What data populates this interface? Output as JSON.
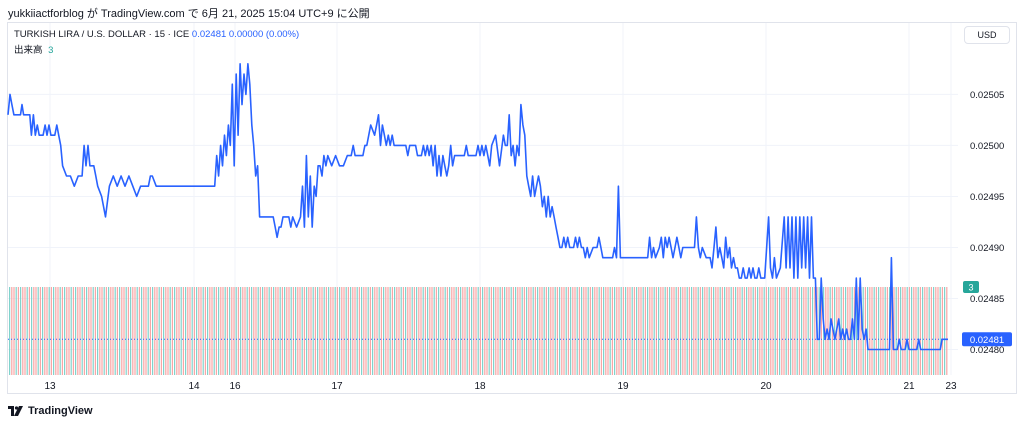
{
  "header": {
    "caption": "yukkiiactforblog が TradingView.com で 6月 21, 2025 15:04 UTC+9 に公開"
  },
  "legend": {
    "symbol": "TURKISH LIRA / U.S. DOLLAR · 15 · ICE",
    "price": "0.02481",
    "change": "0.00000 (0.00%)",
    "volume_label": "出来高",
    "volume_value": "3"
  },
  "toolbar": {
    "currency": "USD"
  },
  "footer": {
    "brand": "TradingView"
  },
  "colors": {
    "line": "#2962ff",
    "volume_up": "#7fd3cc",
    "volume_down": "#f9a5a5",
    "volume_badge": "#26a69a",
    "price_badge": "#2962ff",
    "grid": "#f0f3fa"
  },
  "chart_data": {
    "type": "line",
    "series_name": "TURKISH LIRA / U.S. DOLLAR",
    "ylim": [
      0.024775,
      0.02512
    ],
    "y_ticks": [
      "0.02505",
      "0.02500",
      "0.02495",
      "0.02490",
      "0.02485",
      "0.02480"
    ],
    "x_ticks": [
      "13",
      "14",
      "16",
      "17",
      "18",
      "19",
      "20",
      "21",
      "23"
    ],
    "last_price": "0.02481",
    "last_volume": "3",
    "grid": true,
    "y_axis_side": "right",
    "points": [
      [
        0,
        0.02503
      ],
      [
        0.5,
        0.02505
      ],
      [
        1,
        0.02504
      ],
      [
        1.5,
        0.02503
      ],
      [
        3.2,
        0.02503
      ],
      [
        3.6,
        0.02504
      ],
      [
        4,
        0.02503
      ],
      [
        5.6,
        0.02503
      ],
      [
        6,
        0.02501
      ],
      [
        6.5,
        0.02503
      ],
      [
        7,
        0.02501
      ],
      [
        7.5,
        0.02502
      ],
      [
        8,
        0.02501
      ],
      [
        9,
        0.02501
      ],
      [
        9.5,
        0.02502
      ],
      [
        10,
        0.02501
      ],
      [
        10.5,
        0.02502
      ],
      [
        11,
        0.02501
      ],
      [
        12,
        0.02501
      ],
      [
        12.5,
        0.02502
      ],
      [
        13,
        0.02501
      ],
      [
        13.5,
        0.025
      ],
      [
        14,
        0.02498
      ],
      [
        15,
        0.02497
      ],
      [
        16,
        0.02497
      ],
      [
        17,
        0.02496
      ],
      [
        18,
        0.02497
      ],
      [
        19,
        0.02497
      ],
      [
        19.5,
        0.025
      ],
      [
        20,
        0.02498
      ],
      [
        20.5,
        0.025
      ],
      [
        21,
        0.02498
      ],
      [
        22,
        0.02498
      ],
      [
        22.5,
        0.02497
      ],
      [
        23,
        0.02496
      ],
      [
        24,
        0.02495
      ],
      [
        25,
        0.02493
      ],
      [
        26,
        0.02496
      ],
      [
        27,
        0.02497
      ],
      [
        28,
        0.02496
      ],
      [
        29,
        0.02497
      ],
      [
        30,
        0.02496
      ],
      [
        31,
        0.02497
      ],
      [
        32,
        0.02496
      ],
      [
        33,
        0.02495
      ],
      [
        34,
        0.02496
      ],
      [
        35,
        0.02496
      ],
      [
        36,
        0.02496
      ],
      [
        36.5,
        0.02497
      ],
      [
        37,
        0.02497
      ],
      [
        38,
        0.02496
      ],
      [
        41,
        0.02496
      ],
      [
        45,
        0.02496
      ],
      [
        49,
        0.02496
      ],
      [
        53,
        0.02496
      ],
      [
        53.5,
        0.02499
      ],
      [
        54,
        0.02497
      ],
      [
        54.5,
        0.025
      ],
      [
        55,
        0.02498
      ],
      [
        55.5,
        0.02501
      ],
      [
        56,
        0.02499
      ],
      [
        56.5,
        0.02502
      ],
      [
        57,
        0.025
      ],
      [
        57.5,
        0.02506
      ],
      [
        58,
        0.02498
      ],
      [
        58.5,
        0.02507
      ],
      [
        59,
        0.02501
      ],
      [
        59.5,
        0.02508
      ],
      [
        60,
        0.02504
      ],
      [
        60.5,
        0.02507
      ],
      [
        61,
        0.02505
      ],
      [
        61.5,
        0.02508
      ],
      [
        62,
        0.02506
      ],
      [
        62.5,
        0.02502
      ],
      [
        63,
        0.025
      ],
      [
        63.5,
        0.02497
      ],
      [
        64,
        0.02498
      ],
      [
        64.5,
        0.02493
      ],
      [
        65,
        0.02493
      ],
      [
        68,
        0.02493
      ],
      [
        68.5,
        0.02492
      ],
      [
        69,
        0.02491
      ],
      [
        69.5,
        0.02492
      ],
      [
        70,
        0.02492
      ],
      [
        70.5,
        0.02493
      ],
      [
        72,
        0.02493
      ],
      [
        72.5,
        0.02492
      ],
      [
        73,
        0.02493
      ],
      [
        74,
        0.02492
      ],
      [
        75,
        0.02493
      ],
      [
        75.5,
        0.02496
      ],
      [
        76,
        0.02492
      ],
      [
        76.5,
        0.02499
      ],
      [
        77,
        0.02493
      ],
      [
        77.5,
        0.02497
      ],
      [
        78,
        0.02492
      ],
      [
        78.5,
        0.02496
      ],
      [
        79,
        0.02495
      ],
      [
        79.5,
        0.02498
      ],
      [
        80,
        0.02498
      ],
      [
        80.5,
        0.02497
      ],
      [
        81,
        0.02499
      ],
      [
        81.5,
        0.02498
      ],
      [
        82,
        0.02499
      ],
      [
        83,
        0.02498
      ],
      [
        84,
        0.02499
      ],
      [
        85,
        0.02498
      ],
      [
        86,
        0.02498
      ],
      [
        87,
        0.02499
      ],
      [
        88,
        0.02499
      ],
      [
        88.5,
        0.025
      ],
      [
        89,
        0.02499
      ],
      [
        90,
        0.02499
      ],
      [
        91,
        0.02499
      ],
      [
        91.5,
        0.025
      ],
      [
        92,
        0.025
      ],
      [
        93,
        0.02502
      ],
      [
        94,
        0.02501
      ],
      [
        94.5,
        0.02502
      ],
      [
        95,
        0.02503
      ],
      [
        95.5,
        0.025
      ],
      [
        96,
        0.02502
      ],
      [
        96.5,
        0.02501
      ],
      [
        97,
        0.025
      ],
      [
        97.5,
        0.02501
      ],
      [
        98,
        0.025
      ],
      [
        98.5,
        0.02501
      ],
      [
        99,
        0.025
      ],
      [
        100,
        0.025
      ],
      [
        101,
        0.025
      ],
      [
        101.5,
        0.025
      ],
      [
        102,
        0.025
      ],
      [
        102.5,
        0.02499
      ],
      [
        103,
        0.025
      ],
      [
        104,
        0.025
      ],
      [
        104.5,
        0.025
      ],
      [
        105,
        0.02499
      ],
      [
        106,
        0.02499
      ],
      [
        106.5,
        0.025
      ],
      [
        107,
        0.02499
      ],
      [
        107.5,
        0.025
      ],
      [
        108,
        0.02499
      ],
      [
        108.5,
        0.025
      ],
      [
        109,
        0.02498
      ],
      [
        109.5,
        0.025
      ],
      [
        110,
        0.02497
      ],
      [
        110.5,
        0.02499
      ],
      [
        111,
        0.02497
      ],
      [
        111.5,
        0.02499
      ],
      [
        112,
        0.02498
      ],
      [
        112.5,
        0.02497
      ],
      [
        113,
        0.02498
      ],
      [
        113.5,
        0.025
      ],
      [
        114,
        0.02498
      ],
      [
        114.5,
        0.02499
      ],
      [
        115,
        0.02499
      ],
      [
        116,
        0.02499
      ],
      [
        117,
        0.02499
      ],
      [
        117.5,
        0.025
      ],
      [
        118,
        0.02499
      ],
      [
        119,
        0.02499
      ],
      [
        120,
        0.02499
      ],
      [
        120.5,
        0.025
      ],
      [
        121,
        0.02499
      ],
      [
        121.5,
        0.025
      ],
      [
        122,
        0.02499
      ],
      [
        122.5,
        0.025
      ],
      [
        123,
        0.02499
      ],
      [
        123.5,
        0.02498
      ],
      [
        124,
        0.025
      ],
      [
        125,
        0.02501
      ],
      [
        126,
        0.02498
      ],
      [
        127,
        0.02501
      ],
      [
        127.5,
        0.025
      ],
      [
        128,
        0.025
      ],
      [
        128.5,
        0.02503
      ],
      [
        129,
        0.02499
      ],
      [
        129.5,
        0.025
      ],
      [
        130,
        0.02498
      ],
      [
        130.5,
        0.025
      ],
      [
        131,
        0.02499
      ],
      [
        131.5,
        0.02504
      ],
      [
        132,
        0.02502
      ],
      [
        132.5,
        0.02501
      ],
      [
        133,
        0.02497
      ],
      [
        133.5,
        0.02496
      ],
      [
        134,
        0.02495
      ],
      [
        134.5,
        0.02497
      ],
      [
        135,
        0.02495
      ],
      [
        135.5,
        0.02496
      ],
      [
        136,
        0.02497
      ],
      [
        136.5,
        0.02496
      ],
      [
        137,
        0.02494
      ],
      [
        137.5,
        0.02495
      ],
      [
        138,
        0.02493
      ],
      [
        138.5,
        0.02495
      ],
      [
        139,
        0.02493
      ],
      [
        139.5,
        0.02494
      ],
      [
        140,
        0.02493
      ],
      [
        140.5,
        0.02492
      ],
      [
        141,
        0.02491
      ],
      [
        141.5,
        0.0249
      ],
      [
        142,
        0.0249
      ],
      [
        142.5,
        0.02491
      ],
      [
        143,
        0.0249
      ],
      [
        143.5,
        0.02491
      ],
      [
        144,
        0.0249
      ],
      [
        145,
        0.0249
      ],
      [
        145.5,
        0.02491
      ],
      [
        146,
        0.0249
      ],
      [
        146.5,
        0.02491
      ],
      [
        147,
        0.0249
      ],
      [
        147.5,
        0.0249
      ],
      [
        148,
        0.02489
      ],
      [
        148.5,
        0.0249
      ],
      [
        149,
        0.02489
      ],
      [
        150,
        0.0249
      ],
      [
        151,
        0.0249
      ],
      [
        151.5,
        0.02491
      ],
      [
        152,
        0.0249
      ],
      [
        152.5,
        0.02489
      ],
      [
        153,
        0.02489
      ],
      [
        154,
        0.02489
      ],
      [
        155,
        0.02489
      ],
      [
        155.5,
        0.0249
      ],
      [
        156,
        0.02489
      ],
      [
        156.5,
        0.02496
      ],
      [
        157,
        0.02489
      ],
      [
        158,
        0.02489
      ],
      [
        160,
        0.02489
      ],
      [
        162,
        0.02489
      ],
      [
        164,
        0.02489
      ],
      [
        164.5,
        0.02491
      ],
      [
        165,
        0.02489
      ],
      [
        165.5,
        0.0249
      ],
      [
        166,
        0.02489
      ],
      [
        167,
        0.0249
      ],
      [
        167.5,
        0.02491
      ],
      [
        168,
        0.02489
      ],
      [
        168.5,
        0.02491
      ],
      [
        169,
        0.0249
      ],
      [
        169.5,
        0.02491
      ],
      [
        170,
        0.0249
      ],
      [
        170.5,
        0.02489
      ],
      [
        171,
        0.0249
      ],
      [
        171.5,
        0.02491
      ],
      [
        172,
        0.0249
      ],
      [
        172.5,
        0.02489
      ],
      [
        173,
        0.0249
      ],
      [
        174,
        0.0249
      ],
      [
        175,
        0.0249
      ],
      [
        176,
        0.0249
      ],
      [
        176.5,
        0.02493
      ],
      [
        177,
        0.0249
      ],
      [
        177.5,
        0.02489
      ],
      [
        178,
        0.0249
      ],
      [
        179,
        0.02489
      ],
      [
        180,
        0.02489
      ],
      [
        180.5,
        0.02488
      ],
      [
        181,
        0.0249
      ],
      [
        181.5,
        0.02492
      ],
      [
        182,
        0.02489
      ],
      [
        182.5,
        0.0249
      ],
      [
        183,
        0.02489
      ],
      [
        183.5,
        0.02488
      ],
      [
        184,
        0.02491
      ],
      [
        184.5,
        0.02489
      ],
      [
        185,
        0.0249
      ],
      [
        185.5,
        0.02488
      ],
      [
        186,
        0.02489
      ],
      [
        186.5,
        0.02488
      ],
      [
        187,
        0.02488
      ],
      [
        187.5,
        0.02487
      ],
      [
        188,
        0.02487
      ],
      [
        188.5,
        0.02488
      ],
      [
        189,
        0.02487
      ],
      [
        189.5,
        0.02487
      ],
      [
        190,
        0.02488
      ],
      [
        190.5,
        0.02487
      ],
      [
        191,
        0.02488
      ],
      [
        191.5,
        0.02487
      ],
      [
        192,
        0.02487
      ],
      [
        192.5,
        0.02488
      ],
      [
        193,
        0.02487
      ],
      [
        194,
        0.02487
      ],
      [
        195,
        0.02493
      ],
      [
        195.5,
        0.02488
      ],
      [
        196,
        0.02487
      ],
      [
        196.5,
        0.02489
      ],
      [
        197,
        0.02487
      ],
      [
        198,
        0.02488
      ],
      [
        199,
        0.02493
      ],
      [
        199.5,
        0.02488
      ],
      [
        200,
        0.02493
      ],
      [
        200.5,
        0.02488
      ],
      [
        201,
        0.02493
      ],
      [
        201.5,
        0.02487
      ],
      [
        202,
        0.02493
      ],
      [
        202.5,
        0.02487
      ],
      [
        203,
        0.02493
      ],
      [
        203.5,
        0.02488
      ],
      [
        204,
        0.02493
      ],
      [
        204.5,
        0.02488
      ],
      [
        205,
        0.02493
      ],
      [
        205.5,
        0.02487
      ],
      [
        206,
        0.02493
      ],
      [
        206.5,
        0.02487
      ],
      [
        207,
        0.02487
      ],
      [
        207.5,
        0.02481
      ],
      [
        208,
        0.02481
      ],
      [
        208.5,
        0.02487
      ],
      [
        209,
        0.02483
      ],
      [
        209.5,
        0.02481
      ],
      [
        210,
        0.02482
      ],
      [
        210.5,
        0.02481
      ],
      [
        211,
        0.02483
      ],
      [
        211.5,
        0.02482
      ],
      [
        212,
        0.02481
      ],
      [
        212.5,
        0.02482
      ],
      [
        213,
        0.02483
      ],
      [
        213.5,
        0.02481
      ],
      [
        214,
        0.02482
      ],
      [
        214.5,
        0.02481
      ],
      [
        215,
        0.02482
      ],
      [
        215.5,
        0.02481
      ],
      [
        216,
        0.02481
      ],
      [
        216.5,
        0.02483
      ],
      [
        217,
        0.02481
      ],
      [
        217.5,
        0.02487
      ],
      [
        218,
        0.02481
      ],
      [
        218.5,
        0.02487
      ],
      [
        219,
        0.02482
      ],
      [
        219.5,
        0.02481
      ],
      [
        220,
        0.02482
      ],
      [
        220.5,
        0.0248
      ],
      [
        221,
        0.0248
      ],
      [
        222,
        0.0248
      ],
      [
        223,
        0.0248
      ],
      [
        224,
        0.0248
      ],
      [
        225,
        0.0248
      ],
      [
        226,
        0.0248
      ],
      [
        226.5,
        0.02489
      ],
      [
        227,
        0.0248
      ],
      [
        227.5,
        0.0248
      ],
      [
        228,
        0.0248
      ],
      [
        228.5,
        0.02481
      ],
      [
        229,
        0.0248
      ],
      [
        230,
        0.0248
      ],
      [
        230.5,
        0.02481
      ],
      [
        231,
        0.0248
      ],
      [
        232,
        0.0248
      ],
      [
        233,
        0.0248
      ],
      [
        233.5,
        0.02481
      ],
      [
        234,
        0.0248
      ],
      [
        235,
        0.0248
      ],
      [
        236,
        0.0248
      ],
      [
        237,
        0.0248
      ],
      [
        238,
        0.0248
      ],
      [
        239,
        0.0248
      ],
      [
        239.5,
        0.02481
      ],
      [
        240,
        0.02481
      ],
      [
        241,
        0.02481
      ]
    ]
  }
}
